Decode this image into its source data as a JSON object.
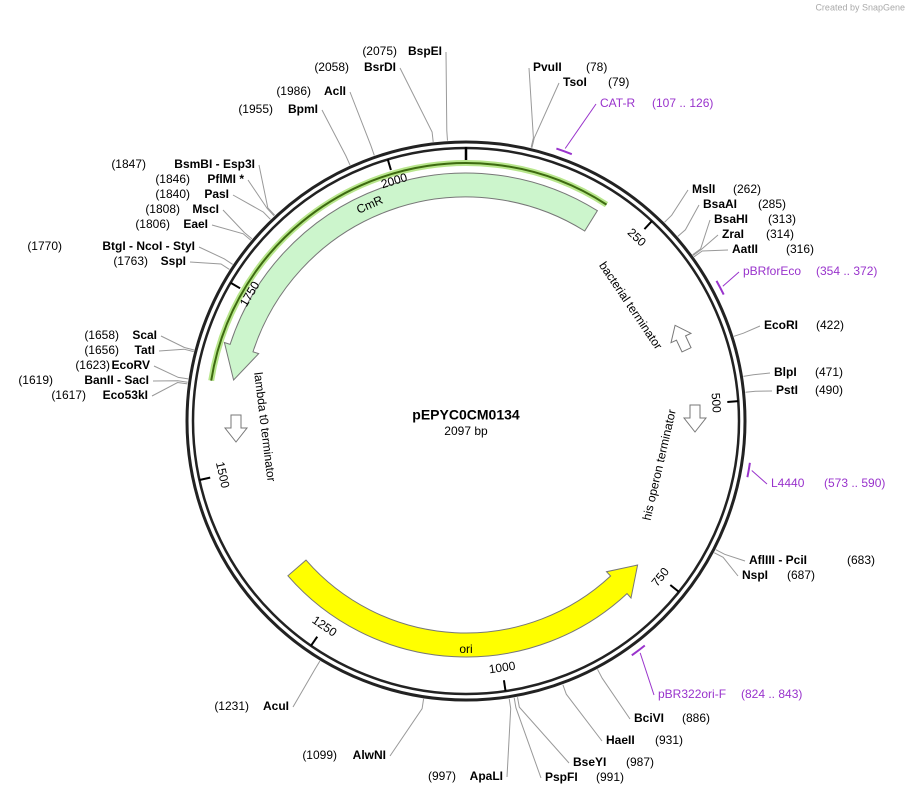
{
  "credit": "Created by SnapGene",
  "title": "pEPYC0CM0134",
  "length": {
    "value": 2097,
    "label": "2097 bp"
  },
  "ticks": [
    250,
    500,
    750,
    1000,
    1250,
    1500,
    1750,
    2000
  ],
  "features": [
    "CmR",
    "ori",
    "bacterial terminator",
    "his operon terminator",
    "lambda t0 terminator"
  ],
  "enzymes": [
    {
      "name": "BspEI",
      "site": {
        "value": 2075,
        "label": "(2075)"
      }
    },
    {
      "name": "BsrDI",
      "site": {
        "value": 2058,
        "label": "(2058)"
      }
    },
    {
      "name": "AclI",
      "site": {
        "value": 1986,
        "label": "(1986)"
      }
    },
    {
      "name": "BpmI",
      "site": {
        "value": 1955,
        "label": "(1955)"
      }
    },
    {
      "name": "BsmBI - Esp3I",
      "site": {
        "value": 1847,
        "label": "(1847)"
      }
    },
    {
      "name": "PflMI *",
      "site": {
        "value": 1846,
        "label": "(1846)"
      }
    },
    {
      "name": "PasI",
      "site": {
        "value": 1840,
        "label": "(1840)"
      }
    },
    {
      "name": "MscI",
      "site": {
        "value": 1808,
        "label": "(1808)"
      }
    },
    {
      "name": "EaeI",
      "site": {
        "value": 1806,
        "label": "(1806)"
      }
    },
    {
      "name": "BtgI - NcoI - StyI",
      "site": {
        "value": 1770,
        "label": "(1770)"
      }
    },
    {
      "name": "SspI",
      "site": {
        "value": 1763,
        "label": "(1763)"
      }
    },
    {
      "name": "ScaI",
      "site": {
        "value": 1658,
        "label": "(1658)"
      }
    },
    {
      "name": "TatI",
      "site": {
        "value": 1656,
        "label": "(1656)"
      }
    },
    {
      "name": "EcoRV",
      "site": {
        "value": 1623,
        "label": "(1623)"
      }
    },
    {
      "name": "BanII - SacI",
      "site": {
        "value": 1619,
        "label": "(1619)"
      }
    },
    {
      "name": "Eco53kI",
      "site": {
        "value": 1617,
        "label": "(1617)"
      }
    },
    {
      "name": "AcuI",
      "site": {
        "value": 1231,
        "label": "(1231)"
      }
    },
    {
      "name": "AlwNI",
      "site": {
        "value": 1099,
        "label": "(1099)"
      }
    },
    {
      "name": "ApaLI",
      "site": {
        "value": 997,
        "label": "(997)"
      }
    },
    {
      "name": "PvuII",
      "site": {
        "value": 78,
        "label": "(78)"
      }
    },
    {
      "name": "TsoI",
      "site": {
        "value": 79,
        "label": "(79)"
      }
    },
    {
      "name": "MslI",
      "site": {
        "value": 262,
        "label": "(262)"
      }
    },
    {
      "name": "BsaAI",
      "site": {
        "value": 285,
        "label": "(285)"
      }
    },
    {
      "name": "BsaHI",
      "site": {
        "value": 313,
        "label": "(313)"
      }
    },
    {
      "name": "ZraI",
      "site": {
        "value": 314,
        "label": "(314)"
      }
    },
    {
      "name": "AatII",
      "site": {
        "value": 316,
        "label": "(316)"
      }
    },
    {
      "name": "EcoRI",
      "site": {
        "value": 422,
        "label": "(422)"
      }
    },
    {
      "name": "BlpI",
      "site": {
        "value": 471,
        "label": "(471)"
      }
    },
    {
      "name": "PstI",
      "site": {
        "value": 490,
        "label": "(490)"
      }
    },
    {
      "name": "AflIII - PciI",
      "site": {
        "value": 683,
        "label": "(683)"
      }
    },
    {
      "name": "NspI",
      "site": {
        "value": 687,
        "label": "(687)"
      }
    },
    {
      "name": "BciVI",
      "site": {
        "value": 886,
        "label": "(886)"
      }
    },
    {
      "name": "HaeII",
      "site": {
        "value": 931,
        "label": "(931)"
      }
    },
    {
      "name": "BseYI",
      "site": {
        "value": 987,
        "label": "(987)"
      }
    },
    {
      "name": "PspFI",
      "site": {
        "value": 991,
        "label": "(991)"
      }
    }
  ],
  "primers": [
    {
      "name": "CAT-R",
      "range": {
        "start": 107,
        "end": 126,
        "label": "(107 .. 126)"
      }
    },
    {
      "name": "pBRforEco",
      "range": {
        "start": 354,
        "end": 372,
        "label": "(354 .. 372)"
      }
    },
    {
      "name": "L4440",
      "range": {
        "start": 573,
        "end": 590,
        "label": "(573 .. 590)"
      }
    },
    {
      "name": "pBR322ori-F",
      "range": {
        "start": 824,
        "end": 843,
        "label": "(824 .. 843)"
      }
    }
  ]
}
